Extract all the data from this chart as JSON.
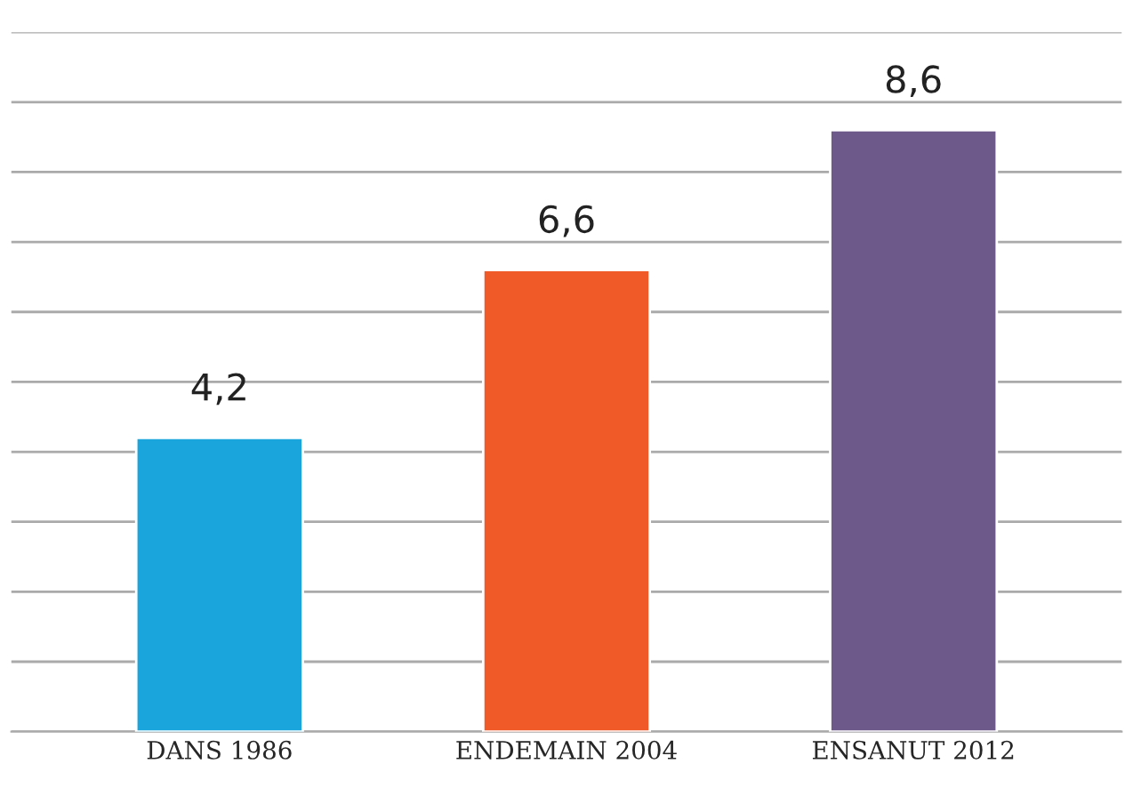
{
  "chart_data": {
    "type": "bar",
    "categories": [
      "DANS 1986",
      "ENDEMAIN 2004",
      "ENSANUT 2012"
    ],
    "values": [
      4.2,
      6.6,
      8.6
    ],
    "value_labels": [
      "4,2",
      "6,6",
      "8,6"
    ],
    "colors": [
      "#1aa6dc",
      "#f05a28",
      "#6e5a8a"
    ],
    "ylim": [
      0,
      10
    ],
    "yticks": [
      {
        "value": 0,
        "label": null
      },
      {
        "value": 1,
        "label": null
      },
      {
        "value": 2,
        "label": null
      },
      {
        "value": 3,
        "label": null
      },
      {
        "value": 4,
        "label": null
      },
      {
        "value": 5,
        "label": null
      },
      {
        "value": 6,
        "label": null
      },
      {
        "value": 7,
        "label": null
      },
      {
        "value": 8,
        "label": null
      },
      {
        "value": 9,
        "label": null
      },
      {
        "value": 10,
        "label": null
      }
    ],
    "grid": "y",
    "tick_labels": "x"
  }
}
